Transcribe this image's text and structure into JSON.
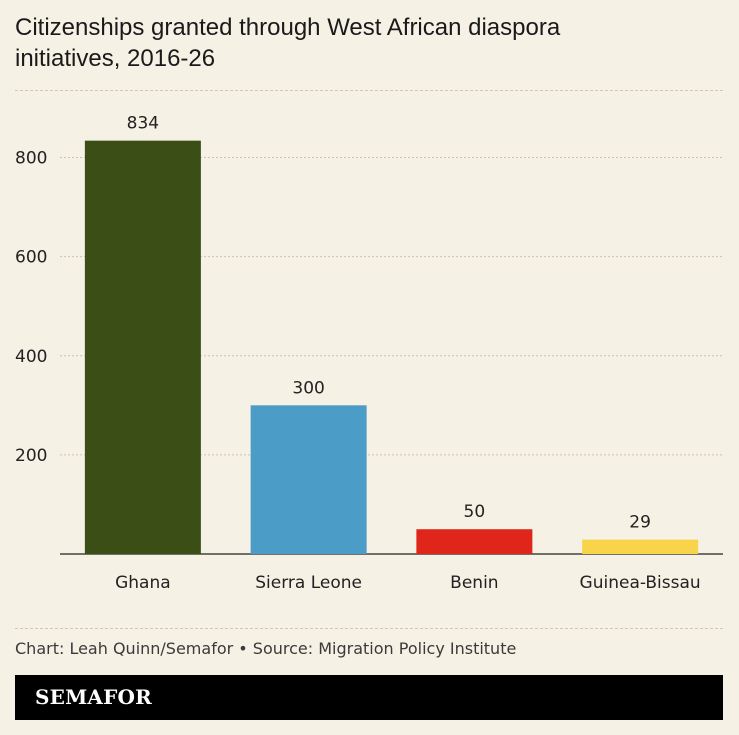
{
  "title_lines": [
    "Citizenships granted through West African diaspora",
    "initiatives, 2016-26"
  ],
  "credit": "Chart: Leah Quinn/Semafor • Source: Migration Policy Institute",
  "logo": "SEMAFOR",
  "chart_data": {
    "type": "bar",
    "categories": [
      "Ghana",
      "Sierra Leone",
      "Benin",
      "Guinea-Bissau"
    ],
    "values": [
      834,
      300,
      50,
      29
    ],
    "colors": [
      "#3a4e16",
      "#4b9cc6",
      "#e0261b",
      "#f8d44a"
    ],
    "title": "Citizenships granted through West African diaspora initiatives, 2016-26",
    "xlabel": "",
    "ylabel": "",
    "ylim": [
      0,
      900
    ],
    "yticks": [
      200,
      400,
      600,
      800
    ],
    "grid": true
  }
}
